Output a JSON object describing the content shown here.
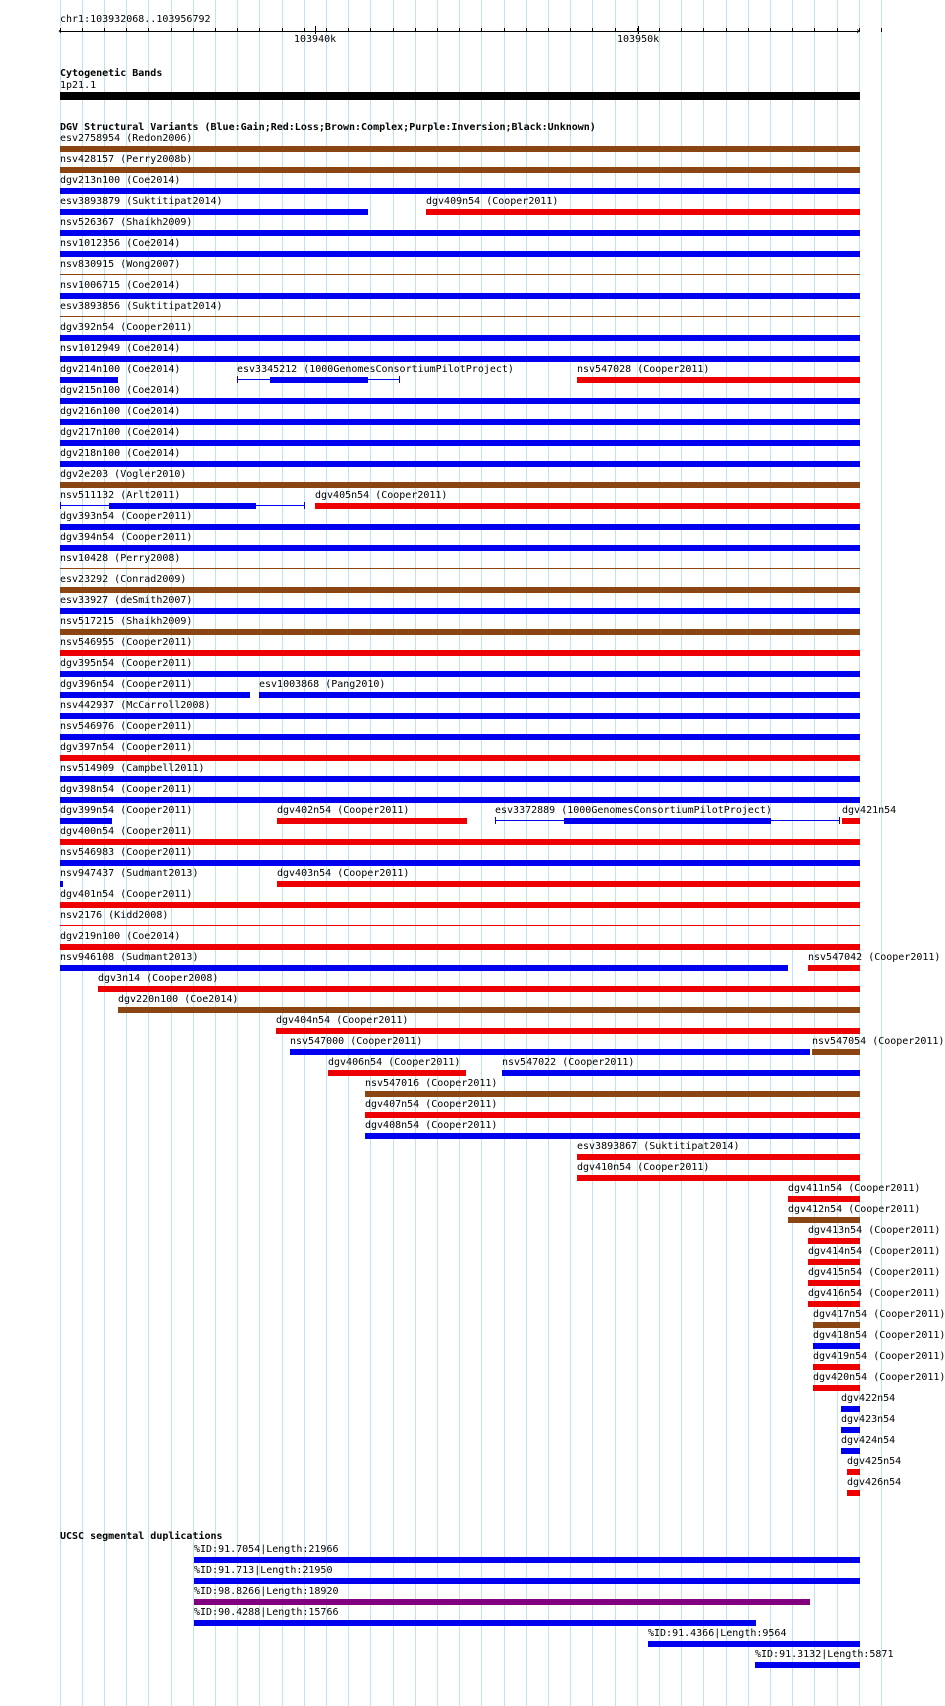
{
  "ruler": {
    "position": "chr1:103932068..103956792",
    "ticks": [
      "103940k",
      "103950k"
    ]
  },
  "colors": {
    "gain": "#0000ee",
    "loss": "#ee0000",
    "complex": "#8b4513",
    "inversion": "#800080",
    "unknown": "#000000",
    "grid": "#bfe3f0"
  },
  "tracks": {
    "cytoband": {
      "title": "Cytogenetic Bands",
      "band": "1p21.1"
    },
    "dgv": {
      "title": "DGV Structural Variants (Blue:Gain;Red:Loss;Brown:Complex;Purple:Inversion;Black:Unknown)",
      "features": [
        {
          "label": "esv2758954 (Redon2006)",
          "color": "complex"
        },
        {
          "label": "nsv428157 (Perry2008b)",
          "color": "complex"
        },
        {
          "label": "dgv213n100 (Coe2014)",
          "color": "gain"
        },
        {
          "label": "esv3893879 (Suktitipat2014)",
          "color": "gain"
        },
        {
          "label": "dgv409n54 (Cooper2011)",
          "color": "loss"
        },
        {
          "label": "nsv526367 (Shaikh2009)",
          "color": "gain"
        },
        {
          "label": "nsv1012356 (Coe2014)",
          "color": "gain"
        },
        {
          "label": "nsv830915 (Wong2007)",
          "color": "complex"
        },
        {
          "label": "nsv1006715 (Coe2014)",
          "color": "gain"
        },
        {
          "label": "esv3893856 (Suktitipat2014)",
          "color": "complex"
        },
        {
          "label": "dgv392n54 (Cooper2011)",
          "color": "gain"
        },
        {
          "label": "nsv1012949 (Coe2014)",
          "color": "gain"
        },
        {
          "label": "dgv214n100 (Coe2014)",
          "color": "gain"
        },
        {
          "label": "esv3345212 (1000GenomesConsortiumPilotProject)",
          "color": "gain"
        },
        {
          "label": "nsv547028 (Cooper2011)",
          "color": "loss"
        },
        {
          "label": "dgv215n100 (Coe2014)",
          "color": "gain"
        },
        {
          "label": "dgv216n100 (Coe2014)",
          "color": "gain"
        },
        {
          "label": "dgv217n100 (Coe2014)",
          "color": "gain"
        },
        {
          "label": "dgv218n100 (Coe2014)",
          "color": "gain"
        },
        {
          "label": "dgv2e203 (Vogler2010)",
          "color": "complex"
        },
        {
          "label": "nsv511132 (Arlt2011)",
          "color": "gain"
        },
        {
          "label": "dgv405n54 (Cooper2011)",
          "color": "loss"
        },
        {
          "label": "dgv393n54 (Cooper2011)",
          "color": "gain"
        },
        {
          "label": "dgv394n54 (Cooper2011)",
          "color": "gain"
        },
        {
          "label": "nsv10428 (Perry2008)",
          "color": "complex"
        },
        {
          "label": "esv23292 (Conrad2009)",
          "color": "complex"
        },
        {
          "label": "esv33927 (deSmith2007)",
          "color": "gain"
        },
        {
          "label": "nsv517215 (Shaikh2009)",
          "color": "complex"
        },
        {
          "label": "nsv546955 (Cooper2011)",
          "color": "loss"
        },
        {
          "label": "dgv395n54 (Cooper2011)",
          "color": "gain"
        },
        {
          "label": "dgv396n54 (Cooper2011)",
          "color": "gain"
        },
        {
          "label": "esv1003868 (Pang2010)",
          "color": "gain"
        },
        {
          "label": "nsv442937 (McCarroll2008)",
          "color": "gain"
        },
        {
          "label": "nsv546976 (Cooper2011)",
          "color": "gain"
        },
        {
          "label": "dgv397n54 (Cooper2011)",
          "color": "loss"
        },
        {
          "label": "nsv514909 (Campbell2011)",
          "color": "gain"
        },
        {
          "label": "dgv398n54 (Cooper2011)",
          "color": "gain"
        },
        {
          "label": "dgv399n54 (Cooper2011)",
          "color": "gain"
        },
        {
          "label": "dgv402n54 (Cooper2011)",
          "color": "loss"
        },
        {
          "label": "esv3372889 (1000GenomesConsortiumPilotProject)",
          "color": "gain"
        },
        {
          "label": "dgv421n54",
          "color": "loss"
        },
        {
          "label": "dgv400n54 (Cooper2011)",
          "color": "loss"
        },
        {
          "label": "nsv546983 (Cooper2011)",
          "color": "gain"
        },
        {
          "label": "nsv947437 (Sudmant2013)",
          "color": "gain"
        },
        {
          "label": "dgv403n54 (Cooper2011)",
          "color": "loss"
        },
        {
          "label": "dgv401n54 (Cooper2011)",
          "color": "loss"
        },
        {
          "label": "nsv2176 (Kidd2008)",
          "color": "loss"
        },
        {
          "label": "dgv219n100 (Coe2014)",
          "color": "loss"
        },
        {
          "label": "nsv946108 (Sudmant2013)",
          "color": "gain"
        },
        {
          "label": "nsv547042 (Cooper2011)",
          "color": "loss"
        },
        {
          "label": "dgv3n14 (Cooper2008)",
          "color": "loss"
        },
        {
          "label": "dgv220n100 (Coe2014)",
          "color": "complex"
        },
        {
          "label": "dgv404n54 (Cooper2011)",
          "color": "loss"
        },
        {
          "label": "nsv547000 (Cooper2011)",
          "color": "gain"
        },
        {
          "label": "nsv547054 (Cooper2011)",
          "color": "complex"
        },
        {
          "label": "dgv406n54 (Cooper2011)",
          "color": "loss"
        },
        {
          "label": "nsv547022 (Cooper2011)",
          "color": "gain"
        },
        {
          "label": "nsv547016 (Cooper2011)",
          "color": "complex"
        },
        {
          "label": "dgv407n54 (Cooper2011)",
          "color": "loss"
        },
        {
          "label": "dgv408n54 (Cooper2011)",
          "color": "gain"
        },
        {
          "label": "esv3893867 (Suktitipat2014)",
          "color": "loss"
        },
        {
          "label": "dgv410n54 (Cooper2011)",
          "color": "loss"
        },
        {
          "label": "dgv411n54 (Cooper2011)",
          "color": "loss"
        },
        {
          "label": "dgv412n54 (Cooper2011)",
          "color": "complex"
        },
        {
          "label": "dgv413n54 (Cooper2011)",
          "color": "loss"
        },
        {
          "label": "dgv414n54 (Cooper2011)",
          "color": "loss"
        },
        {
          "label": "dgv415n54 (Cooper2011)",
          "color": "loss"
        },
        {
          "label": "dgv416n54 (Cooper2011)",
          "color": "loss"
        },
        {
          "label": "dgv417n54 (Cooper2011)",
          "color": "complex"
        },
        {
          "label": "dgv418n54 (Cooper2011)",
          "color": "gain"
        },
        {
          "label": "dgv419n54 (Cooper2011)",
          "color": "loss"
        },
        {
          "label": "dgv420n54 (Cooper2011)",
          "color": "loss"
        },
        {
          "label": "dgv422n54",
          "color": "gain"
        },
        {
          "label": "dgv423n54",
          "color": "gain"
        },
        {
          "label": "dgv424n54",
          "color": "gain"
        },
        {
          "label": "dgv425n54",
          "color": "loss"
        },
        {
          "label": "dgv426n54",
          "color": "loss"
        }
      ]
    },
    "segdups": {
      "title": "UCSC segmental duplications",
      "features": [
        {
          "label": "%ID:91.7054|Length:21966",
          "color": "gain"
        },
        {
          "label": "%ID:91.713|Length:21950",
          "color": "gain"
        },
        {
          "label": "%ID:98.8266|Length:18920",
          "color": "inversion"
        },
        {
          "label": "%ID:90.4288|Length:15766",
          "color": "gain"
        },
        {
          "label": "%ID:91.4366|Length:9564",
          "color": "gain"
        },
        {
          "label": "%ID:91.3132|Length:5871",
          "color": "gain"
        }
      ]
    }
  }
}
